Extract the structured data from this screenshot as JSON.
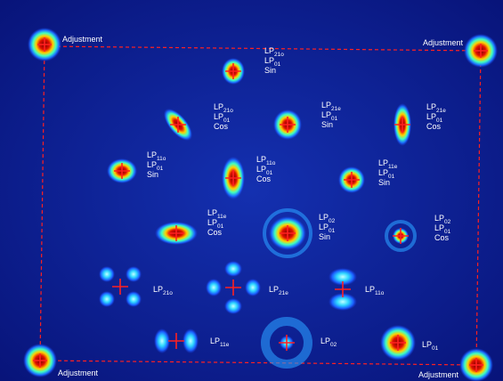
{
  "modes": [
    {
      "lines": [
        [
          "LP",
          "21o"
        ],
        [
          "LP",
          "01"
        ],
        [
          "Sin"
        ]
      ]
    },
    {
      "lines": [
        [
          "LP",
          "21o"
        ],
        [
          "LP",
          "01"
        ],
        [
          "Cos"
        ]
      ]
    },
    {
      "lines": [
        [
          "LP",
          "21e"
        ],
        [
          "LP",
          "01"
        ],
        [
          "Sin"
        ]
      ]
    },
    {
      "lines": [
        [
          "LP",
          "21e"
        ],
        [
          "LP",
          "01"
        ],
        [
          "Cos"
        ]
      ]
    },
    {
      "lines": [
        [
          "LP",
          "11o"
        ],
        [
          "LP",
          "01"
        ],
        [
          "Sin"
        ]
      ]
    },
    {
      "lines": [
        [
          "LP",
          "11o"
        ],
        [
          "LP",
          "01"
        ],
        [
          "Cos"
        ]
      ]
    },
    {
      "lines": [
        [
          "LP",
          "11e"
        ],
        [
          "LP",
          "01"
        ],
        [
          "Sin"
        ]
      ]
    },
    {
      "lines": [
        [
          "LP",
          "11e"
        ],
        [
          "LP",
          "01"
        ],
        [
          "Cos"
        ]
      ]
    },
    {
      "lines": [
        [
          "LP",
          "02"
        ],
        [
          "LP",
          "01"
        ],
        [
          "Sin"
        ]
      ]
    },
    {
      "lines": [
        [
          "LP",
          "02"
        ],
        [
          "LP",
          "01"
        ],
        [
          "Cos"
        ]
      ]
    },
    {
      "lines": [
        [
          "LP",
          "21o"
        ]
      ]
    },
    {
      "lines": [
        [
          "LP",
          "21e"
        ]
      ]
    },
    {
      "lines": [
        [
          "LP",
          "11o"
        ]
      ]
    },
    {
      "lines": [
        [
          "LP",
          "11e"
        ]
      ]
    },
    {
      "lines": [
        [
          "LP",
          "02"
        ]
      ]
    },
    {
      "lines": [
        [
          "LP",
          "01"
        ]
      ]
    }
  ],
  "adjustments": [
    "Adjustment",
    "Adjustment",
    "Adjustment",
    "Adjustment"
  ]
}
